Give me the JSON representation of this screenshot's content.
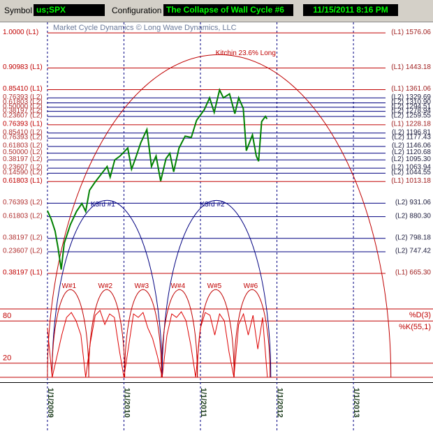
{
  "toolbar": {
    "symbol_label": "Symbol",
    "symbol": "us;SPX",
    "config_label": "Configuration",
    "config": "The Collapse of Wall Cycle #6",
    "datetime": "11/15/2011 8:16 PM"
  },
  "chart_data": {
    "type": "line",
    "watermark": "Market Cycle Dynamics © Long Wave Dynamics, LLC",
    "xlim": [
      2008.38,
      2014.04
    ],
    "xticks": [
      {
        "value": 2009,
        "label": "1/1/2009"
      },
      {
        "value": 2010,
        "label": "1/1/2010"
      },
      {
        "value": 2011,
        "label": "1/1/2011"
      },
      {
        "value": 2012,
        "label": "1/1/2012"
      },
      {
        "value": 2013,
        "label": "1/1/2013"
      }
    ],
    "ylim": [
      272,
      1616
    ],
    "y2lim": [
      0,
      100
    ],
    "y2ticks": [
      20,
      80
    ],
    "stoch_labels": [
      "%D(3)",
      "%K(55,1)"
    ],
    "levels": [
      {
        "label": "1.0000 (L1)",
        "value_label": "(L1) 1576.06",
        "value": 1576.06,
        "color": "#c00000"
      },
      {
        "label": "0.90983 (L1)",
        "value_label": "(L1) 1443.18",
        "value": 1443.18,
        "color": "#c00000"
      },
      {
        "label": "0.85410 (L1)",
        "value_label": "(L1) 1361.06",
        "value": 1361.06,
        "color": "#c00000"
      },
      {
        "label": "0.76393 (L2)",
        "value_label": "(L2) 1329.69",
        "value": 1329.69,
        "color": "#000080"
      },
      {
        "label": "0.61803 (L2)",
        "value_label": "(L2) 1310.90",
        "value": 1310.9,
        "color": "#000080"
      },
      {
        "label": "0.50000 (L2)",
        "value_label": "(L2) 1294.51",
        "value": 1294.51,
        "color": "#000080"
      },
      {
        "label": "0.38197 (L2)",
        "value_label": "(L2) 1278.94",
        "value": 1278.94,
        "color": "#000080"
      },
      {
        "label": "0.23607 (L2)",
        "value_label": "(L2) 1259.55",
        "value": 1259.55,
        "color": "#000080"
      },
      {
        "label": "0.76393 (L1)",
        "value_label": "(L1) 1228.18",
        "value": 1228.18,
        "color": "#c00000"
      },
      {
        "label": "0.85410 (L2)",
        "value_label": "(L2) 1196.81",
        "value": 1196.81,
        "color": "#000080"
      },
      {
        "label": "0.76393 (L2)",
        "value_label": "(L2) 1177.43",
        "value": 1177.43,
        "color": "#000080"
      },
      {
        "label": "0.61803 (L2)",
        "value_label": "(L2) 1146.06",
        "value": 1146.06,
        "color": "#000080"
      },
      {
        "label": "0.50000 (L2)",
        "value_label": "(L2) 1120.68",
        "value": 1120.68,
        "color": "#000080"
      },
      {
        "label": "0.38197 (L2)",
        "value_label": "(L2) 1095.30",
        "value": 1095.3,
        "color": "#000080"
      },
      {
        "label": "0.23607 (L2)",
        "value_label": "(L2) 1063.94",
        "value": 1063.94,
        "color": "#000080"
      },
      {
        "label": "0.14590 (L2)",
        "value_label": "(L2) 1044.55",
        "value": 1044.55,
        "color": "#000080"
      },
      {
        "label": "0.61803 (L1)",
        "value_label": "(L1) 1013.18",
        "value": 1013.18,
        "color": "#c00000"
      },
      {
        "label": "0.76393 (L2)",
        "value_label": "(L2) 931.06",
        "value": 931.06,
        "color": "#000080"
      },
      {
        "label": "0.61803 (L2)",
        "value_label": "(L2) 880.30",
        "value": 880.3,
        "color": "#000080"
      },
      {
        "label": "0.38197 (L2)",
        "value_label": "(L2) 798.18",
        "value": 798.18,
        "color": "#000080"
      },
      {
        "label": "0.23607 (L2)",
        "value_label": "(L2) 747.42",
        "value": 747.42,
        "color": "#000080"
      },
      {
        "label": "0.38197 (L1)",
        "value_label": "(L1) 665.30",
        "value": 665.3,
        "color": "#c00000"
      }
    ],
    "arcs": [
      {
        "label": "Kitchin 23.6% Long",
        "start": 2009.0,
        "end": 2013.49,
        "peak": 1494,
        "color": "#c00000"
      },
      {
        "label": "K3rd #1",
        "start": 2009.06,
        "end": 2010.5,
        "peak": 942,
        "color": "#000080"
      },
      {
        "label": "K3rd #2",
        "start": 2010.5,
        "end": 2011.92,
        "peak": 942,
        "color": "#000080"
      },
      {
        "label": "W#1",
        "start": 2009.06,
        "end": 2009.54,
        "peak": 604,
        "color": "#c00000"
      },
      {
        "label": "W#2",
        "start": 2009.54,
        "end": 2010.01,
        "peak": 604,
        "color": "#c00000"
      },
      {
        "label": "W#3",
        "start": 2010.01,
        "end": 2010.49,
        "peak": 604,
        "color": "#c00000"
      },
      {
        "label": "W#4",
        "start": 2010.49,
        "end": 2010.96,
        "peak": 604,
        "color": "#c00000"
      },
      {
        "label": "W#5",
        "start": 2010.96,
        "end": 2011.44,
        "peak": 604,
        "color": "#c00000"
      },
      {
        "label": "W#6",
        "start": 2011.44,
        "end": 2011.91,
        "peak": 604,
        "color": "#c00000"
      }
    ],
    "series": [
      {
        "color": "#008000",
        "x": [
          2009.0,
          2009.05,
          2009.1,
          2009.14,
          2009.18,
          2009.22,
          2009.3,
          2009.38,
          2009.45,
          2009.5,
          2009.55,
          2009.62,
          2009.7,
          2009.78,
          2009.82,
          2009.88,
          2009.95,
          2010.05,
          2010.1,
          2010.15,
          2010.22,
          2010.3,
          2010.36,
          2010.42,
          2010.48,
          2010.55,
          2010.6,
          2010.65,
          2010.72,
          2010.8,
          2010.88,
          2010.95,
          2011.05,
          2011.12,
          2011.18,
          2011.25,
          2011.3,
          2011.38,
          2011.45,
          2011.5,
          2011.56,
          2011.6,
          2011.68,
          2011.73,
          2011.76,
          2011.8,
          2011.85,
          2011.87
        ],
        "values": [
          903,
          870,
          826,
          760,
          680,
          780,
          850,
          900,
          930,
          900,
          980,
          1010,
          1040,
          1070,
          1030,
          1095,
          1110,
          1140,
          1060,
          1100,
          1160,
          1210,
          1070,
          1110,
          1015,
          1100,
          1120,
          1050,
          1140,
          1185,
          1180,
          1245,
          1285,
          1330,
          1275,
          1360,
          1330,
          1345,
          1270,
          1330,
          1290,
          1130,
          1190,
          1110,
          1090,
          1240,
          1260,
          1250
        ]
      },
      {
        "color": "#dd0000",
        "axis": "y2",
        "x": [
          2009,
          2009.0625,
          2009.125,
          2009.1875,
          2009.25,
          2009.3125,
          2009.375,
          2009.4375,
          2009.5,
          2009.5625,
          2009.625,
          2009.6875,
          2009.75,
          2009.8125,
          2009.875,
          2009.9375,
          2010,
          2010.0625,
          2010.125,
          2010.1875,
          2010.25,
          2010.3125,
          2010.375,
          2010.4375,
          2010.5,
          2010.5625,
          2010.625,
          2010.6875,
          2010.75,
          2010.8125,
          2010.875,
          2010.9375,
          2011,
          2011.0625,
          2011.125,
          2011.1875,
          2011.25,
          2011.3125,
          2011.375,
          2011.4375,
          2011.5,
          2011.5625,
          2011.625,
          2011.6875,
          2011.75,
          2011.8125,
          2011.875
        ],
        "values": [
          70,
          0,
          30,
          60,
          85,
          92,
          80,
          60,
          0,
          50,
          88,
          95,
          75,
          90,
          85,
          40,
          0,
          45,
          90,
          85,
          92,
          70,
          55,
          30,
          0,
          60,
          90,
          85,
          93,
          80,
          45,
          0,
          70,
          92,
          88,
          60,
          90,
          80,
          35,
          0,
          75,
          90,
          60,
          88,
          40,
          85,
          0
        ]
      }
    ]
  }
}
